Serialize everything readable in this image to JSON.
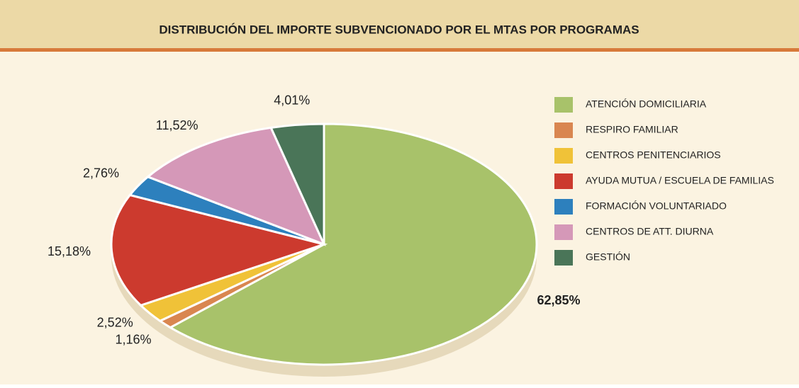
{
  "chart_data": {
    "type": "pie",
    "title": "DISTRIBUCIÓN DEL IMPORTE SUBVENCIONADO POR EL MTAS POR PROGRAMAS",
    "categories": [
      "ATENCIÓN DOMICILIARIA",
      "RESPIRO FAMILIAR",
      "CENTROS PENITENCIARIOS",
      "AYUDA MUTUA / ESCUELA DE FAMILIAS",
      "FORMACIÓN VOLUNTARIADO",
      "CENTROS DE ATT. DIURNA",
      "GESTIÓN"
    ],
    "values": [
      62.85,
      1.16,
      2.52,
      15.18,
      2.76,
      11.52,
      4.01
    ],
    "value_labels": [
      "62,85%",
      "1,16%",
      "2,52%",
      "15,18%",
      "2,76%",
      "11,52%",
      "4,01%"
    ],
    "colors": [
      "#a8c26a",
      "#d98650",
      "#f0c238",
      "#cc3a2e",
      "#2d80bd",
      "#d598b8",
      "#4a7558"
    ],
    "legend": "right"
  }
}
